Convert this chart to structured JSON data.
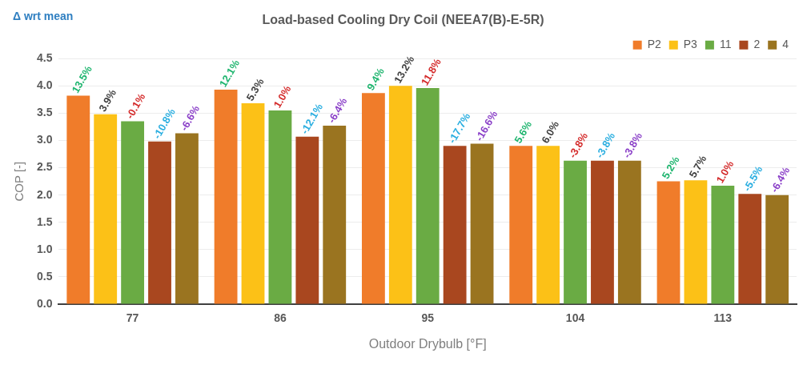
{
  "chart_data": {
    "type": "bar",
    "title": "Load-based Cooling Dry Coil (NEEA7(B)-E-5R)",
    "xlabel": "Outdoor Drybulb [°F]",
    "ylabel": "COP [-]",
    "annotations": [
      "Δ wrt mean",
      "13.5%",
      "3.9%",
      "-0.1%",
      "-10.8%",
      "-6.6%",
      "12.1%",
      "5.3%",
      "1.0%",
      "-12.1%",
      "-6.4%",
      "9.4%",
      "13.2%",
      "11.8%",
      "-17.7%",
      "-16.6%",
      "5.6%",
      "6.0%",
      "-3.8%",
      "-3.8%",
      "-3.8%",
      "5.2%",
      "5.7%",
      "1.0%",
      "-5.5%",
      "-6.4%"
    ],
    "categories": [
      "77",
      "86",
      "95",
      "104",
      "113"
    ],
    "series": [
      {
        "name": "P2",
        "color": "#f07c2a",
        "values": [
          3.82,
          3.93,
          3.87,
          2.9,
          2.25
        ]
      },
      {
        "name": "P3",
        "color": "#fcc117",
        "values": [
          3.48,
          3.68,
          4.0,
          2.9,
          2.27
        ]
      },
      {
        "name": "11",
        "color": "#6aab44",
        "values": [
          3.35,
          3.55,
          3.96,
          2.63,
          2.17
        ]
      },
      {
        "name": "2",
        "color": "#a9471f",
        "values": [
          2.98,
          3.07,
          2.9,
          2.63,
          2.02
        ]
      },
      {
        "name": "4",
        "color": "#9a7420",
        "values": [
          3.13,
          3.27,
          2.94,
          2.63,
          2.0
        ]
      }
    ],
    "ylim": [
      0,
      4.5
    ],
    "yticks": [
      {
        "value": 0,
        "label": "0.0"
      },
      {
        "value": 0.5,
        "label": "0.5"
      },
      {
        "value": 1,
        "label": "1.0"
      },
      {
        "value": 1.5,
        "label": "1.5"
      },
      {
        "value": 2,
        "label": "2.0"
      },
      {
        "value": 2.5,
        "label": "2.5"
      },
      {
        "value": 3,
        "label": "3.0"
      },
      {
        "value": 3.5,
        "label": "3.5"
      },
      {
        "value": 4,
        "label": "4.0"
      },
      {
        "value": 4.5,
        "label": "4.5"
      }
    ],
    "grid": "y",
    "legend": "top right"
  }
}
